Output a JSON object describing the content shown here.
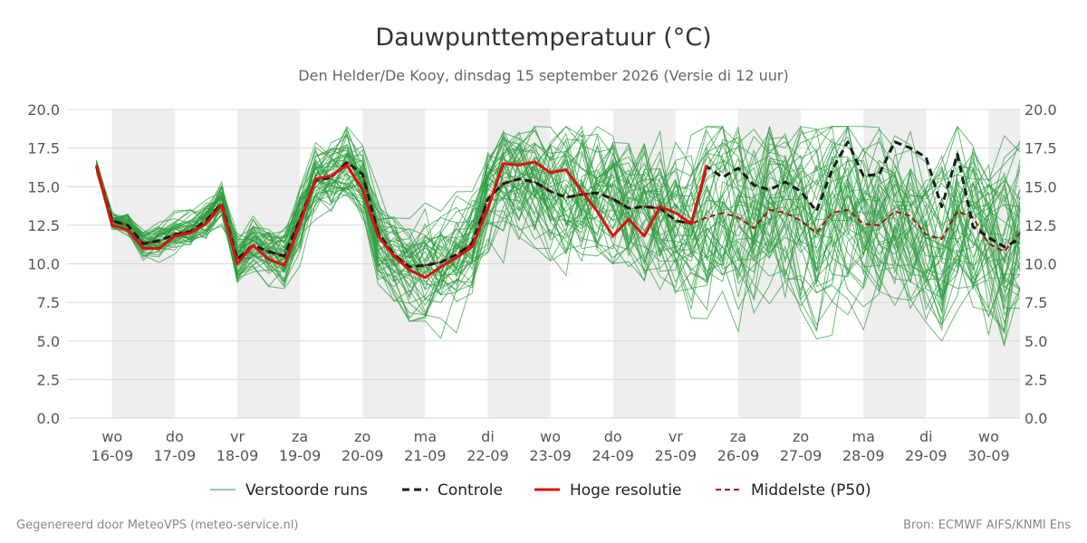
{
  "chart_data": {
    "type": "line",
    "title": "Dauwpunttemperatuur (°C)",
    "subtitle": "Den Helder/De Kooy, dinsdag 15 september 2026 (Versie di 12 uur)",
    "ylim": [
      0,
      20
    ],
    "yticks": [
      "0.0",
      "2.5",
      "5.0",
      "7.5",
      "10.0",
      "12.5",
      "15.0",
      "17.5",
      "20.0"
    ],
    "xlim": [
      -0.72,
      14.5
    ],
    "x_ticks": [
      {
        "day": "wo",
        "date": "16-09"
      },
      {
        "day": "do",
        "date": "17-09"
      },
      {
        "day": "vr",
        "date": "18-09"
      },
      {
        "day": "za",
        "date": "19-09"
      },
      {
        "day": "zo",
        "date": "20-09"
      },
      {
        "day": "ma",
        "date": "21-09"
      },
      {
        "day": "di",
        "date": "22-09"
      },
      {
        "day": "wo",
        "date": "23-09"
      },
      {
        "day": "do",
        "date": "24-09"
      },
      {
        "day": "vr",
        "date": "25-09"
      },
      {
        "day": "za",
        "date": "26-09"
      },
      {
        "day": "zo",
        "date": "27-09"
      },
      {
        "day": "ma",
        "date": "28-09"
      },
      {
        "day": "di",
        "date": "29-09"
      },
      {
        "day": "wo",
        "date": "30-09"
      }
    ],
    "shaded_days": [
      0,
      2,
      4,
      6,
      8,
      10,
      12,
      14
    ],
    "grid": true,
    "legend_position": "bottom",
    "series": [
      {
        "name": "Hoge resolutie",
        "color": "#dd1111",
        "x": [
          -0.25,
          0,
          0.25,
          0.5,
          0.75,
          1,
          1.25,
          1.5,
          1.75,
          2,
          2.25,
          2.5,
          2.75,
          3,
          3.25,
          3.5,
          3.75,
          4,
          4.25,
          4.5,
          4.75,
          5,
          5.25,
          5.5,
          5.75,
          6,
          6.25,
          6.5,
          6.75,
          7,
          7.25,
          7.5,
          7.75,
          8,
          8.25,
          8.5,
          8.75,
          9,
          9.25,
          9.5
        ],
        "y": [
          16.4,
          12.5,
          12.2,
          11.0,
          11.0,
          11.8,
          12.0,
          12.6,
          13.8,
          10.0,
          11.2,
          10.3,
          9.9,
          12.6,
          15.5,
          15.7,
          16.4,
          14.8,
          11.8,
          10.5,
          9.6,
          9.1,
          9.8,
          10.4,
          11.1,
          13.6,
          16.5,
          16.4,
          16.6,
          15.9,
          16.1,
          14.7,
          13.4,
          11.8,
          12.9,
          11.8,
          13.7,
          13.3,
          12.6,
          16.4
        ]
      },
      {
        "name": "Controle",
        "color": "#1a1a1a",
        "dashed": true,
        "x": [
          -0.25,
          0,
          0.25,
          0.5,
          0.75,
          1,
          1.25,
          1.5,
          1.75,
          2,
          2.25,
          2.5,
          2.75,
          3,
          3.25,
          3.5,
          3.75,
          4,
          4.25,
          4.5,
          4.75,
          5,
          5.25,
          5.5,
          5.75,
          6,
          6.25,
          6.5,
          6.75,
          7,
          7.25,
          7.5,
          7.75,
          8,
          8.25,
          8.5,
          8.75,
          9,
          9.25,
          9.5,
          9.75,
          10,
          10.25,
          10.5,
          10.75,
          11,
          11.25,
          11.5,
          11.75,
          12,
          12.25,
          12.5,
          12.75,
          13,
          13.25,
          13.5,
          13.75,
          14,
          14.25,
          14.5
        ],
        "y": [
          16.3,
          12.8,
          12.5,
          11.3,
          11.5,
          11.9,
          12.1,
          12.8,
          13.9,
          10.3,
          11.2,
          10.8,
          10.5,
          12.9,
          15.4,
          15.6,
          16.6,
          15.8,
          12.0,
          10.6,
          9.8,
          9.9,
          10.1,
          10.6,
          11.3,
          14.2,
          15.2,
          15.5,
          15.3,
          14.7,
          14.3,
          14.5,
          14.6,
          14.2,
          13.6,
          13.7,
          13.6,
          12.8,
          12.6,
          16.3,
          15.6,
          16.2,
          15.1,
          14.8,
          15.3,
          14.7,
          13.4,
          16.1,
          17.9,
          15.7,
          15.8,
          17.9,
          17.5,
          16.9,
          13.7,
          17.1,
          12.4,
          11.7,
          11.1,
          11.6
        ]
      },
      {
        "name": "Middelste (P50)",
        "color": "#aa1111",
        "dashed": true,
        "x": [
          -0.25,
          0,
          0.25,
          0.5,
          0.75,
          1,
          1.25,
          1.5,
          1.75,
          2,
          2.25,
          2.5,
          2.75,
          3,
          3.25,
          3.5,
          3.75,
          4,
          4.25,
          4.5,
          4.75,
          5,
          5.25,
          5.5,
          5.75,
          6,
          6.25,
          6.5,
          6.75,
          7,
          7.25,
          7.5,
          7.75,
          8,
          8.25,
          8.5,
          8.75,
          9,
          9.25,
          9.5,
          9.75,
          10,
          10.25,
          10.5,
          10.75,
          11,
          11.25,
          11.5,
          11.75,
          12,
          12.25,
          12.5,
          12.75,
          13,
          13.25,
          13.5,
          13.75,
          14,
          14.25,
          14.5
        ],
        "y": [
          16.3,
          12.8,
          12.5,
          11.3,
          11.5,
          11.9,
          12.1,
          12.8,
          13.9,
          10.3,
          11.2,
          10.8,
          10.5,
          12.9,
          15.4,
          15.6,
          16.6,
          15.8,
          12.0,
          10.6,
          9.8,
          9.9,
          10.1,
          10.6,
          11.3,
          14.2,
          15.2,
          15.5,
          15.3,
          14.7,
          14.3,
          14.5,
          14.6,
          14.2,
          13.6,
          13.7,
          13.6,
          12.8,
          12.6,
          13.0,
          13.3,
          13.0,
          12.3,
          13.5,
          13.3,
          12.8,
          12.0,
          13.3,
          13.5,
          12.6,
          12.5,
          13.4,
          13.1,
          11.9,
          11.6,
          13.4,
          13.0,
          11.3,
          10.8,
          12.0
        ]
      }
    ],
    "ensemble": {
      "name": "Verstoorde runs",
      "color": "#2e9c3e",
      "members": 50,
      "x_step": 0.25,
      "x_start": -0.25,
      "center_y": [
        16.3,
        12.8,
        12.5,
        11.3,
        11.5,
        11.9,
        12.1,
        12.8,
        13.9,
        10.3,
        11.2,
        10.8,
        10.5,
        12.9,
        15.4,
        15.6,
        16.6,
        15.8,
        12.0,
        10.6,
        9.8,
        9.9,
        10.1,
        10.6,
        11.3,
        14.2,
        15.2,
        15.5,
        15.3,
        14.7,
        14.3,
        14.5,
        14.6,
        14.2,
        13.6,
        13.7,
        13.6,
        12.8,
        12.6,
        13.0,
        13.3,
        13.0,
        12.3,
        13.5,
        13.3,
        12.8,
        12.0,
        13.3,
        13.5,
        12.6,
        12.5,
        13.4,
        13.1,
        11.9,
        11.6,
        13.4,
        13.0,
        11.3,
        10.8,
        12.0
      ]
    }
  },
  "legend": {
    "ensemble_label": "Verstoorde runs",
    "control_label": "Controle",
    "hires_label": "Hoge resolutie",
    "median_label": "Middelste (P50)"
  },
  "footer": {
    "left": "Gegenereerd door MeteoVPS (meteo-service.nl)",
    "right": "Bron: ECMWF AIFS/KNMI Ens"
  }
}
